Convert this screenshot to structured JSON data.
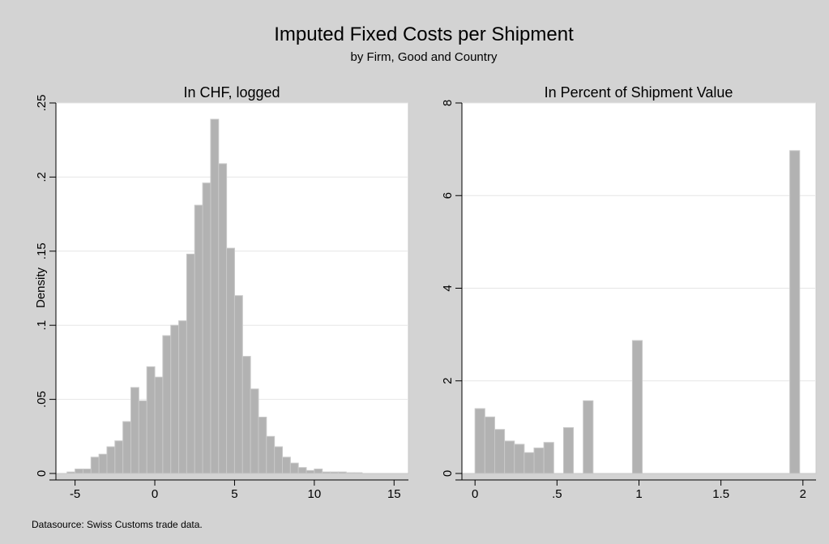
{
  "title": "Imputed Fixed Costs per Shipment",
  "subtitle": "by Firm, Good and Country",
  "note": "Datasource: Swiss Customs trade data.",
  "colors": {
    "background": "#d3d3d3",
    "plot_area": "#ffffff",
    "bar_fill": "#b2b2b2",
    "bar_outline": "#c8c8c8",
    "grid": "#e6e6e6"
  },
  "chart_data": [
    {
      "type": "bar",
      "title": "In CHF, logged",
      "xlabel": "",
      "ylabel": "Density",
      "xlim": [
        -6.2,
        15.9
      ],
      "ylim": [
        0,
        0.25
      ],
      "xticks": [
        -5,
        0,
        5,
        10,
        15
      ],
      "xtick_labels": [
        "-5",
        "0",
        "5",
        "10",
        "15"
      ],
      "yticks": [
        0,
        0.05,
        0.1,
        0.15,
        0.2,
        0.25
      ],
      "ytick_labels": [
        "0",
        ".05",
        ".1",
        ".15",
        ".2",
        ".25"
      ],
      "grid": true,
      "bin_width": 0.5,
      "series": [
        {
          "bins": [
            {
              "x": -5.5,
              "y": 0.001
            },
            {
              "x": -5.0,
              "y": 0.003
            },
            {
              "x": -4.5,
              "y": 0.003
            },
            {
              "x": -4.0,
              "y": 0.011
            },
            {
              "x": -3.5,
              "y": 0.013
            },
            {
              "x": -3.0,
              "y": 0.018
            },
            {
              "x": -2.5,
              "y": 0.022
            },
            {
              "x": -2.0,
              "y": 0.035
            },
            {
              "x": -1.5,
              "y": 0.058
            },
            {
              "x": -1.0,
              "y": 0.049
            },
            {
              "x": -0.5,
              "y": 0.072
            },
            {
              "x": 0.0,
              "y": 0.065
            },
            {
              "x": 0.5,
              "y": 0.093
            },
            {
              "x": 1.0,
              "y": 0.1
            },
            {
              "x": 1.5,
              "y": 0.103
            },
            {
              "x": 2.0,
              "y": 0.148
            },
            {
              "x": 2.5,
              "y": 0.181
            },
            {
              "x": 3.0,
              "y": 0.196
            },
            {
              "x": 3.5,
              "y": 0.239
            },
            {
              "x": 4.0,
              "y": 0.209
            },
            {
              "x": 4.5,
              "y": 0.152
            },
            {
              "x": 5.0,
              "y": 0.12
            },
            {
              "x": 5.5,
              "y": 0.079
            },
            {
              "x": 6.0,
              "y": 0.057
            },
            {
              "x": 6.5,
              "y": 0.038
            },
            {
              "x": 7.0,
              "y": 0.025
            },
            {
              "x": 7.5,
              "y": 0.018
            },
            {
              "x": 8.0,
              "y": 0.011
            },
            {
              "x": 8.5,
              "y": 0.007
            },
            {
              "x": 9.0,
              "y": 0.004
            },
            {
              "x": 9.5,
              "y": 0.002
            },
            {
              "x": 10.0,
              "y": 0.003
            },
            {
              "x": 10.5,
              "y": 0.001
            },
            {
              "x": 11.0,
              "y": 0.001
            },
            {
              "x": 11.5,
              "y": 0.001
            },
            {
              "x": 12.0,
              "y": 0.0005
            },
            {
              "x": 12.5,
              "y": 0.0005
            }
          ]
        }
      ]
    },
    {
      "type": "bar",
      "title": "In Percent of Shipment Value",
      "xlabel": "",
      "ylabel": "",
      "xlim": [
        -0.08,
        2.08
      ],
      "ylim": [
        0,
        8
      ],
      "xticks": [
        0,
        0.5,
        1,
        1.5,
        2
      ],
      "xtick_labels": [
        "0",
        ".5",
        "1",
        "1.5",
        "2"
      ],
      "yticks": [
        0,
        2,
        4,
        6,
        8
      ],
      "ytick_labels": [
        "0",
        "2",
        "4",
        "6",
        "8"
      ],
      "grid": true,
      "bin_width": 0.06,
      "series": [
        {
          "bins": [
            {
              "x": 0.0,
              "y": 1.4
            },
            {
              "x": 0.06,
              "y": 1.22
            },
            {
              "x": 0.12,
              "y": 0.95
            },
            {
              "x": 0.18,
              "y": 0.7
            },
            {
              "x": 0.24,
              "y": 0.63
            },
            {
              "x": 0.3,
              "y": 0.45
            },
            {
              "x": 0.36,
              "y": 0.55
            },
            {
              "x": 0.42,
              "y": 0.67
            },
            {
              "x": 0.48,
              "y": 0.0
            },
            {
              "x": 0.54,
              "y": 0.99
            },
            {
              "x": 0.66,
              "y": 1.57
            },
            {
              "x": 0.96,
              "y": 2.87
            },
            {
              "x": 1.92,
              "y": 6.97
            }
          ]
        }
      ]
    }
  ]
}
